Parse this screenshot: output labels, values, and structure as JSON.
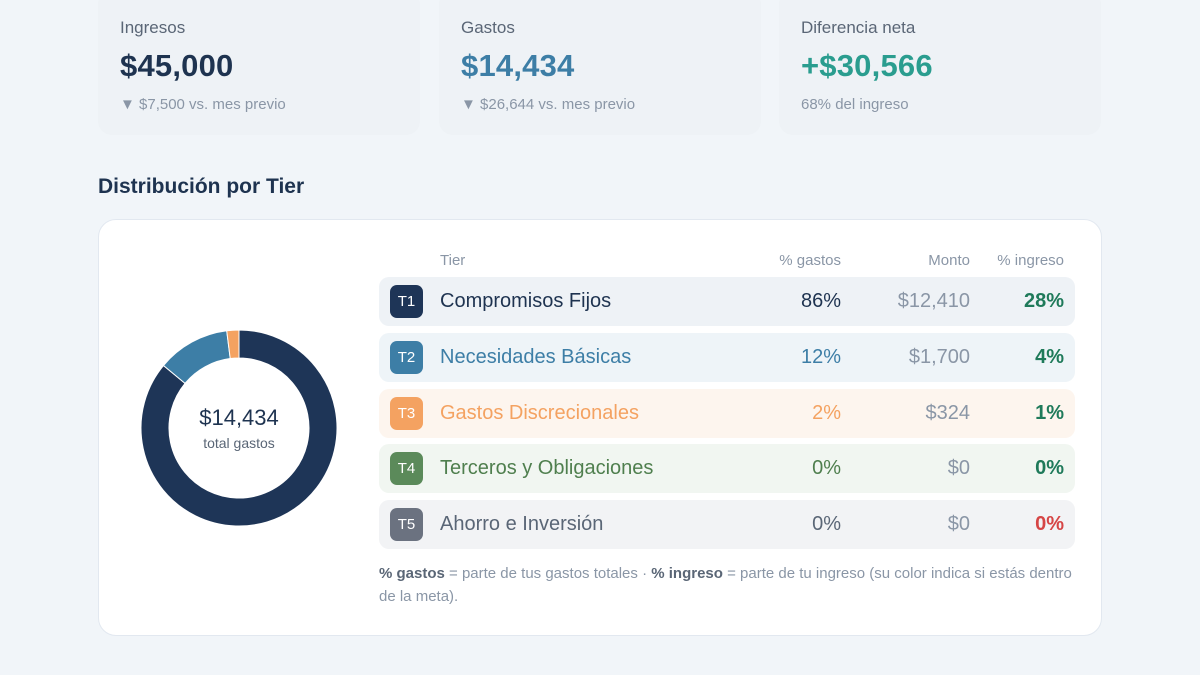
{
  "cards": [
    {
      "label": "Ingresos",
      "value": "$45,000",
      "sub": "▼ $7,500 vs. mes previo"
    },
    {
      "label": "Gastos",
      "value": "$14,434",
      "sub": "▼ $26,644 vs. mes previo"
    },
    {
      "label": "Diferencia neta",
      "value": "+$30,566",
      "sub": "68% del ingreso"
    }
  ],
  "section_title": "Distribución por Tier",
  "donut": {
    "total": "$14,434",
    "label": "total gastos",
    "shares": [
      0.86,
      0.12,
      0.02,
      0,
      0
    ],
    "colors": [
      "#1e3557",
      "#3d7ea6",
      "#f4a261",
      "#5b8a5a",
      "#6b7280"
    ]
  },
  "table": {
    "headers": {
      "tier": "Tier",
      "pct_gastos": "% gastos",
      "monto": "Monto",
      "pct_ingreso": "% ingreso"
    },
    "rows": [
      {
        "badge": "T1",
        "name": "Compromisos Fijos",
        "pct_gastos": "86%",
        "monto": "$12,410",
        "pct_ingreso": "28%",
        "badge_color": "#1e3557",
        "text_color": "#1e3350",
        "row_bg": "#eef2f6",
        "pi_color": "#1f7a5a"
      },
      {
        "badge": "T2",
        "name": "Necesidades Básicas",
        "pct_gastos": "12%",
        "monto": "$1,700",
        "pct_ingreso": "4%",
        "badge_color": "#3d7ea6",
        "text_color": "#3d7ea6",
        "row_bg": "#eef4f8",
        "pi_color": "#1f7a5a"
      },
      {
        "badge": "T3",
        "name": "Gastos Discrecionales",
        "pct_gastos": "2%",
        "monto": "$324",
        "pct_ingreso": "1%",
        "badge_color": "#f4a261",
        "text_color": "#f4a261",
        "row_bg": "#fdf5ee",
        "pi_color": "#1f7a5a"
      },
      {
        "badge": "T4",
        "name": "Terceros y Obligaciones",
        "pct_gastos": "0%",
        "monto": "$0",
        "pct_ingreso": "0%",
        "badge_color": "#5b8a5a",
        "text_color": "#4f7f4e",
        "row_bg": "#f1f6f1",
        "pi_color": "#1f7a5a"
      },
      {
        "badge": "T5",
        "name": "Ahorro e Inversión",
        "pct_gastos": "0%",
        "monto": "$0",
        "pct_ingreso": "0%",
        "badge_color": "#6b7280",
        "text_color": "#5a6676",
        "row_bg": "#f2f3f5",
        "pi_color": "#d64545"
      }
    ]
  },
  "footnote": {
    "term1": "% gastos",
    "text1": " = parte de tus gastos totales · ",
    "term2": "% ingreso",
    "text2": " = parte de tu ingreso (su color indica si estás dentro de la meta)."
  }
}
